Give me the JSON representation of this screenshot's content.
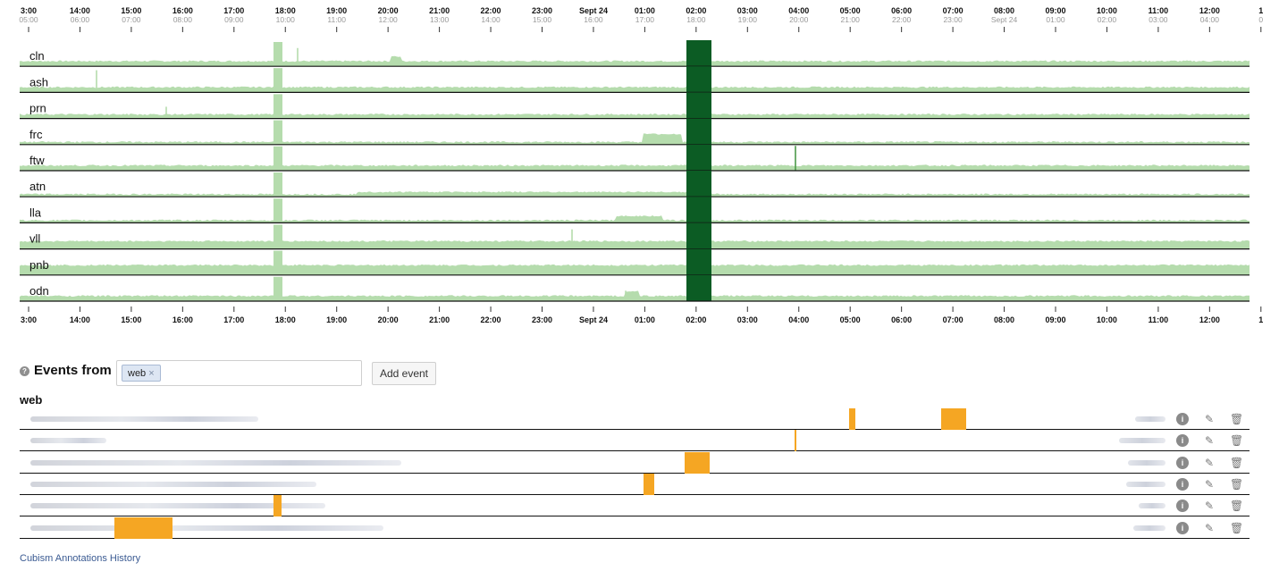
{
  "chart_data": {
    "type": "horizon",
    "title": "",
    "rows": [
      {
        "name": "cln",
        "baseline": 0.2,
        "spikes": [
          [
            333,
            0.7
          ]
        ],
        "bumps": [
          [
            437,
            449,
            0.35
          ]
        ]
      },
      {
        "name": "ash",
        "baseline": 0.2,
        "spikes": [
          [
            108,
            0.85
          ]
        ],
        "bumps": []
      },
      {
        "name": "prn",
        "baseline": 0.16,
        "spikes": [
          [
            186,
            0.45
          ]
        ],
        "bumps": [
          [
            128,
            185,
            0.02
          ]
        ]
      },
      {
        "name": "frc",
        "baseline": 0.1,
        "spikes": [],
        "bumps": [
          [
            720,
            762,
            0.38
          ]
        ]
      },
      {
        "name": "ftw",
        "baseline": 0.2,
        "spikes": [
          [
            890,
            0.95
          ]
        ],
        "bumps": []
      },
      {
        "name": "atn",
        "baseline": 0.1,
        "spikes": [],
        "bumps": [
          [
            400,
            770,
            0.16
          ]
        ]
      },
      {
        "name": "lla",
        "baseline": 0.1,
        "spikes": [],
        "bumps": [
          [
            690,
            740,
            0.24
          ]
        ]
      },
      {
        "name": "vll",
        "baseline": 0.3,
        "spikes": [
          [
            640,
            0.75
          ]
        ],
        "bumps": []
      },
      {
        "name": "pnb",
        "baseline": 0.38,
        "spikes": [],
        "bumps": []
      },
      {
        "name": "odn",
        "baseline": 0.2,
        "spikes": [
          [
            700,
            0.4
          ]
        ],
        "bumps": [
          [
            700,
            714,
            0.35
          ]
        ]
      }
    ],
    "outage_band": {
      "x0": 768,
      "x1": 796
    },
    "dip_band": {
      "x0": 306,
      "x1": 316
    },
    "top_axis": [
      {
        "major": "3:00",
        "minor": "05:00"
      },
      {
        "major": "14:00",
        "minor": "06:00"
      },
      {
        "major": "15:00",
        "minor": "07:00"
      },
      {
        "major": "16:00",
        "minor": "08:00"
      },
      {
        "major": "17:00",
        "minor": "09:00"
      },
      {
        "major": "18:00",
        "minor": "10:00"
      },
      {
        "major": "19:00",
        "minor": "11:00"
      },
      {
        "major": "20:00",
        "minor": "12:00"
      },
      {
        "major": "21:00",
        "minor": "13:00"
      },
      {
        "major": "22:00",
        "minor": "14:00"
      },
      {
        "major": "23:00",
        "minor": "15:00"
      },
      {
        "major": "Sept 24",
        "minor": "16:00"
      },
      {
        "major": "01:00",
        "minor": "17:00"
      },
      {
        "major": "02:00",
        "minor": "18:00"
      },
      {
        "major": "03:00",
        "minor": "19:00"
      },
      {
        "major": "04:00",
        "minor": "20:00"
      },
      {
        "major": "05:00",
        "minor": "21:00"
      },
      {
        "major": "06:00",
        "minor": "22:00"
      },
      {
        "major": "07:00",
        "minor": "23:00"
      },
      {
        "major": "08:00",
        "minor": "Sept 24"
      },
      {
        "major": "09:00",
        "minor": "01:00"
      },
      {
        "major": "10:00",
        "minor": "02:00"
      },
      {
        "major": "11:00",
        "minor": "03:00"
      },
      {
        "major": "12:00",
        "minor": "04:00"
      },
      {
        "major": "1",
        "minor": "0"
      }
    ],
    "bottom_axis": [
      "3:00",
      "14:00",
      "15:00",
      "16:00",
      "17:00",
      "18:00",
      "19:00",
      "20:00",
      "21:00",
      "22:00",
      "23:00",
      "Sept 24",
      "01:00",
      "02:00",
      "03:00",
      "04:00",
      "05:00",
      "06:00",
      "07:00",
      "08:00",
      "09:00",
      "10:00",
      "11:00",
      "12:00",
      "1"
    ]
  },
  "events": {
    "help_icon_glyph": "?",
    "label": "Events from",
    "filter_chip": "web",
    "chip_remove_glyph": "×",
    "add_button": "Add event",
    "group_title": "web",
    "rows": [
      {
        "bars": [
          [
            950,
            957
          ],
          [
            1053,
            1081
          ]
        ],
        "name_len": 255,
        "meta_len": 34
      },
      {
        "bars": [
          [
            889,
            891
          ]
        ],
        "name_len": 85,
        "meta_len": 52
      },
      {
        "bars": [
          [
            766,
            794
          ]
        ],
        "name_len": 415,
        "meta_len": 42
      },
      {
        "bars": [
          [
            720,
            732
          ]
        ],
        "name_len": 320,
        "meta_len": 44
      },
      {
        "bars": [
          [
            306,
            315
          ]
        ],
        "name_len": 330,
        "meta_len": 30
      },
      {
        "bars": [
          [
            128,
            193
          ]
        ],
        "name_len": 395,
        "meta_len": 36
      }
    ]
  },
  "colors": {
    "light": "#b5dcad",
    "mid": "#4c9a4a",
    "dark": "#0c5c24",
    "event": "#f5a623"
  },
  "footer": {
    "link_text": "Cubism Annotations History"
  }
}
